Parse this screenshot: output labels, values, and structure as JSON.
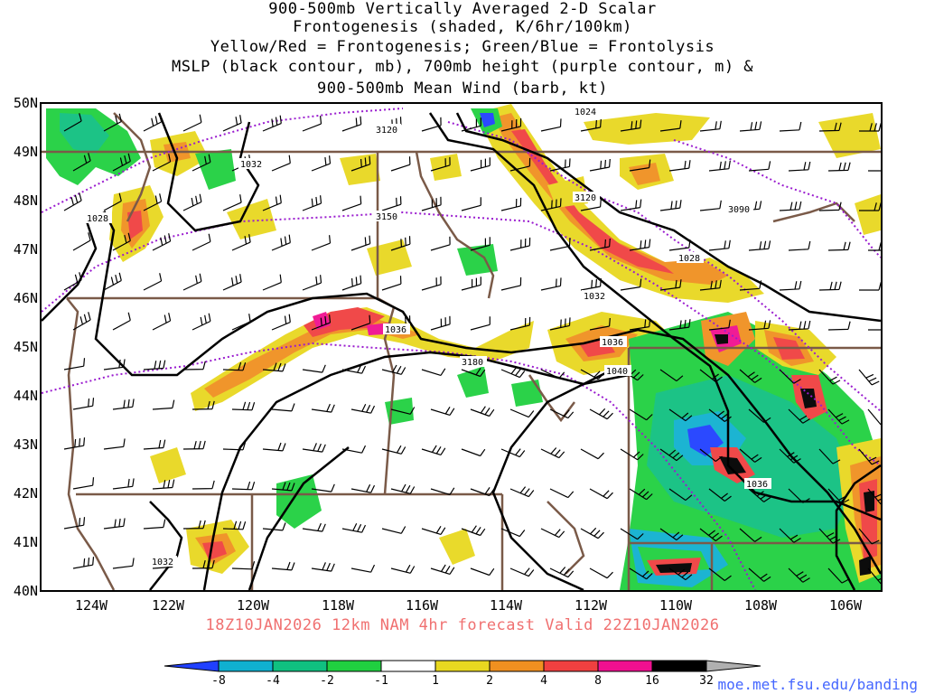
{
  "title_lines": [
    "900-500mb Vertically Averaged 2-D Scalar",
    "Frontogenesis (shaded, K/6hr/100km)",
    "Yellow/Red = Frontogenesis;  Green/Blue = Frontolysis",
    "MSLP (black contour, mb), 700mb height (purple contour, m) &",
    "900-500mb Mean Wind (barb, kt)"
  ],
  "lat_labels": [
    "50N",
    "49N",
    "48N",
    "47N",
    "46N",
    "45N",
    "44N",
    "43N",
    "42N",
    "41N",
    "40N"
  ],
  "lon_labels": [
    "124W",
    "122W",
    "120W",
    "118W",
    "116W",
    "114W",
    "112W",
    "110W",
    "108W",
    "106W"
  ],
  "valid_line": "18Z10JAN2026  12km NAM 4hr forecast Valid 22Z10JAN2026",
  "colorbar": {
    "labels": [
      "-8",
      "-4",
      "-2",
      "-1",
      "1",
      "2",
      "4",
      "8",
      "16",
      "32"
    ],
    "colors": [
      "#2040ff",
      "#10b0d0",
      "#10c080",
      "#20d040",
      "#ffffff",
      "#e8d820",
      "#f09020",
      "#f04040",
      "#f01090",
      "#000000",
      "#b0b0b0"
    ]
  },
  "contour_labels": {
    "mslp": [
      "1024",
      "1032",
      "1028",
      "1028",
      "1032",
      "1036",
      "1036",
      "1040",
      "1036",
      "1032"
    ],
    "height": [
      "3120",
      "3150",
      "3120",
      "3090",
      "3180"
    ]
  },
  "colors": {
    "mslp": "#000000",
    "height": "#9a1ccf",
    "borders": "#7a5a48",
    "valid_text": "#f07070",
    "credit": "#4466ff"
  },
  "credit": "moe.met.fsu.edu/banding"
}
